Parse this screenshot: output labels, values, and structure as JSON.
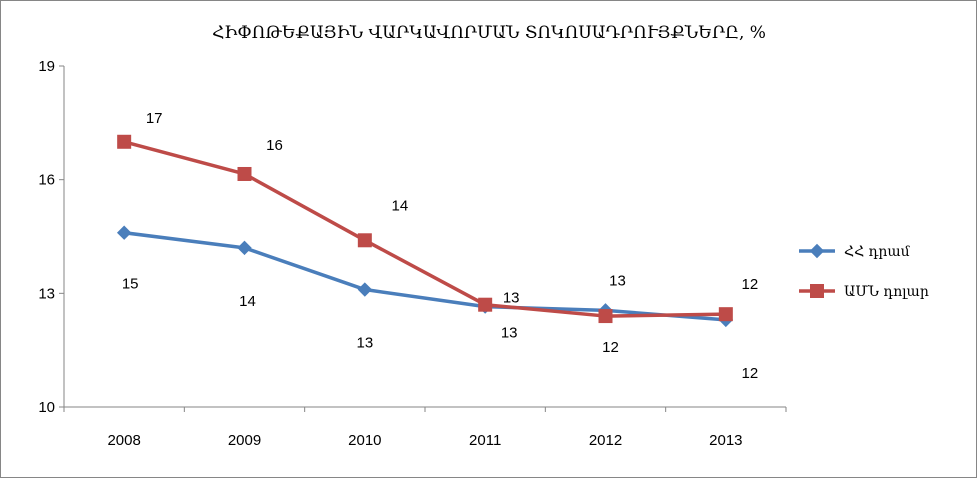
{
  "chart_data": {
    "type": "line",
    "title": "ՀԻՓՈԹԵՔԱՅԻՆ ՎԱՐԿԱՎՈՐՄԱՆ ՏՈԿՈՍԱԴՐՈՒՅՔՆԵՐԸ, %",
    "categories": [
      "2008",
      "2009",
      "2010",
      "2011",
      "2012",
      "2013"
    ],
    "ylim": [
      10,
      19
    ],
    "yticks": [
      "10",
      "13",
      "16",
      "19"
    ],
    "grid": false,
    "legend_position": "right",
    "series": [
      {
        "name": "ՀՀ դրամ",
        "color": "#4a7ebb",
        "marker": "diamond",
        "values": [
          14.6,
          14.2,
          13.1,
          12.65,
          12.55,
          12.3
        ],
        "labels": [
          "15",
          "14",
          "13",
          "13",
          "13",
          "12"
        ]
      },
      {
        "name": "ԱՄՆ դոլար",
        "color": "#be4b48",
        "marker": "square",
        "values": [
          17.0,
          16.15,
          14.4,
          12.7,
          12.4,
          12.45
        ],
        "labels": [
          "17",
          "16",
          "14",
          "13",
          "12",
          "12"
        ]
      }
    ]
  }
}
